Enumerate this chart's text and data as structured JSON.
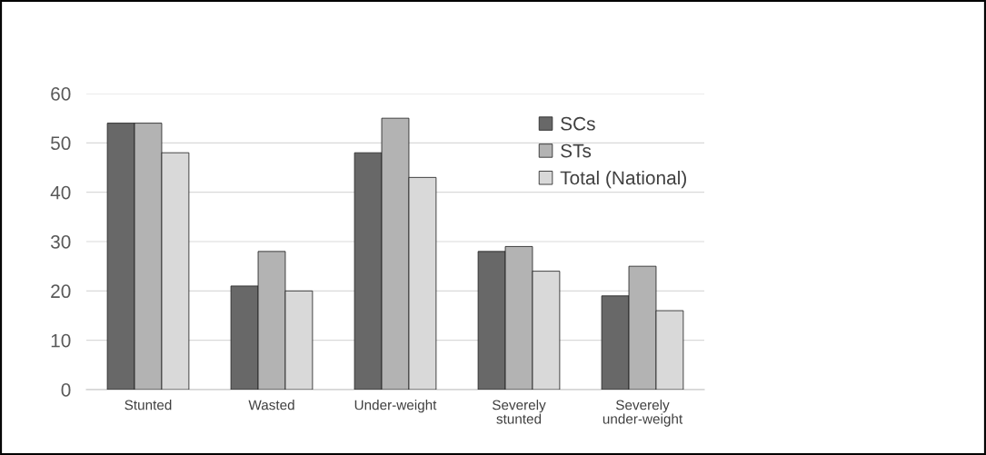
{
  "chart_data": {
    "type": "bar",
    "categories": [
      "Stunted",
      "Wasted",
      "Under-weight",
      "Severely\nstunted",
      "Severely\nunder-weight"
    ],
    "series": [
      {
        "name": "SCs",
        "color": "#686868",
        "values": [
          54,
          21,
          48,
          28,
          19
        ]
      },
      {
        "name": "STs",
        "color": "#b3b3b3",
        "values": [
          54,
          28,
          55,
          29,
          25
        ]
      },
      {
        "name": "Total (National)",
        "color": "#d9d9d9",
        "values": [
          48,
          20,
          43,
          24,
          16
        ]
      }
    ],
    "ylim": [
      0,
      60
    ],
    "yticks": [
      0,
      10,
      20,
      30,
      40,
      50,
      60
    ],
    "grid": "y",
    "legend": "top right"
  }
}
